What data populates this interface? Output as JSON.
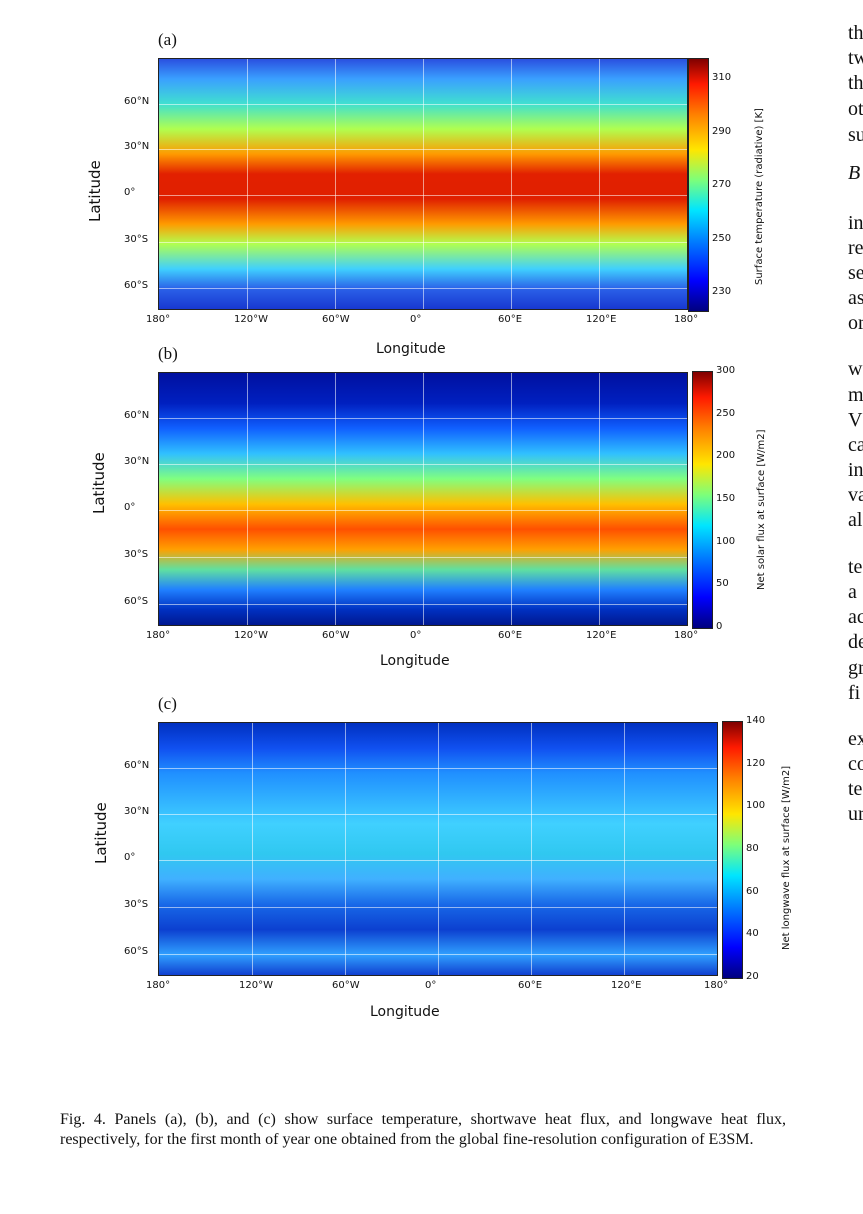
{
  "panels": [
    {
      "label": "(a)",
      "ylabel": "Latitude",
      "xlabel": "Longitude",
      "colorbar_label": "Surface temperature (radiative) [K]",
      "colorbar_ticks": [
        "310",
        "290",
        "270",
        "250",
        "230"
      ]
    },
    {
      "label": "(b)",
      "ylabel": "Latitude",
      "xlabel": "Longitude",
      "colorbar_label": "Net solar flux at surface [W/m2]",
      "colorbar_ticks": [
        "300",
        "250",
        "200",
        "150",
        "100",
        "50",
        "0"
      ]
    },
    {
      "label": "(c)",
      "ylabel": "Latitude",
      "xlabel": "Longitude",
      "colorbar_label": "Net longwave flux at surface [W/m2]",
      "colorbar_ticks": [
        "140",
        "120",
        "100",
        "80",
        "60",
        "40",
        "20"
      ]
    }
  ],
  "lon_ticks": [
    "180°",
    "120°W",
    "60°W",
    "0°",
    "60°E",
    "120°E",
    "180°"
  ],
  "lat_ticks": [
    "60°N",
    "30°N",
    "0°",
    "30°S",
    "60°S"
  ],
  "caption": "Fig. 4. Panels (a), (b), and (c) show surface temperature, shortwave heat flux, and longwave heat flux, respectively, for the first month of year one obtained from the global fine-resolution configuration of E3SM.",
  "right_column_fragments": [
    "th",
    "tw",
    "th",
    "ot",
    "su",
    "B",
    "in",
    "re",
    "se",
    "as",
    "or",
    "w",
    "m",
    "V",
    "ca",
    "in",
    "va",
    "al",
    "te",
    "a",
    "ac",
    "de",
    "gr",
    "fi",
    "ex",
    "co",
    "te",
    "ur"
  ],
  "colors": {
    "cold": "#00007f",
    "warm": "#b80000",
    "ocean_mid": "#40c0ff"
  }
}
